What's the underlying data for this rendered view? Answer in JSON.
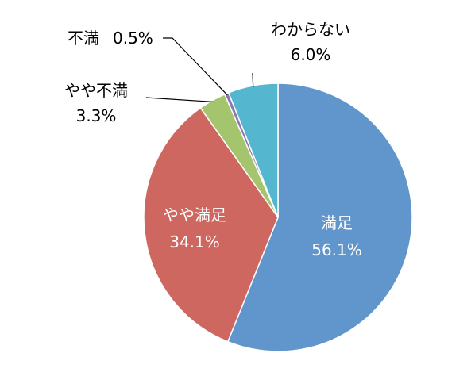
{
  "chart_data": {
    "type": "pie",
    "start_angle_deg": 0,
    "direction": "clockwise",
    "slices": [
      {
        "label": "満足",
        "value": 56.1,
        "value_text": "56.1%",
        "color": "#6096CB"
      },
      {
        "label": "やや満足",
        "value": 34.1,
        "value_text": "34.1%",
        "color": "#CE6760"
      },
      {
        "label": "やや不満",
        "value": 3.3,
        "value_text": "3.3%",
        "color": "#A5C46E"
      },
      {
        "label": "不満",
        "value": 0.5,
        "value_text": "0.5%",
        "color": "#8B78B3"
      },
      {
        "label": "わからない",
        "value": 6.0,
        "value_text": "6.0%",
        "color": "#55B7CF"
      }
    ]
  }
}
